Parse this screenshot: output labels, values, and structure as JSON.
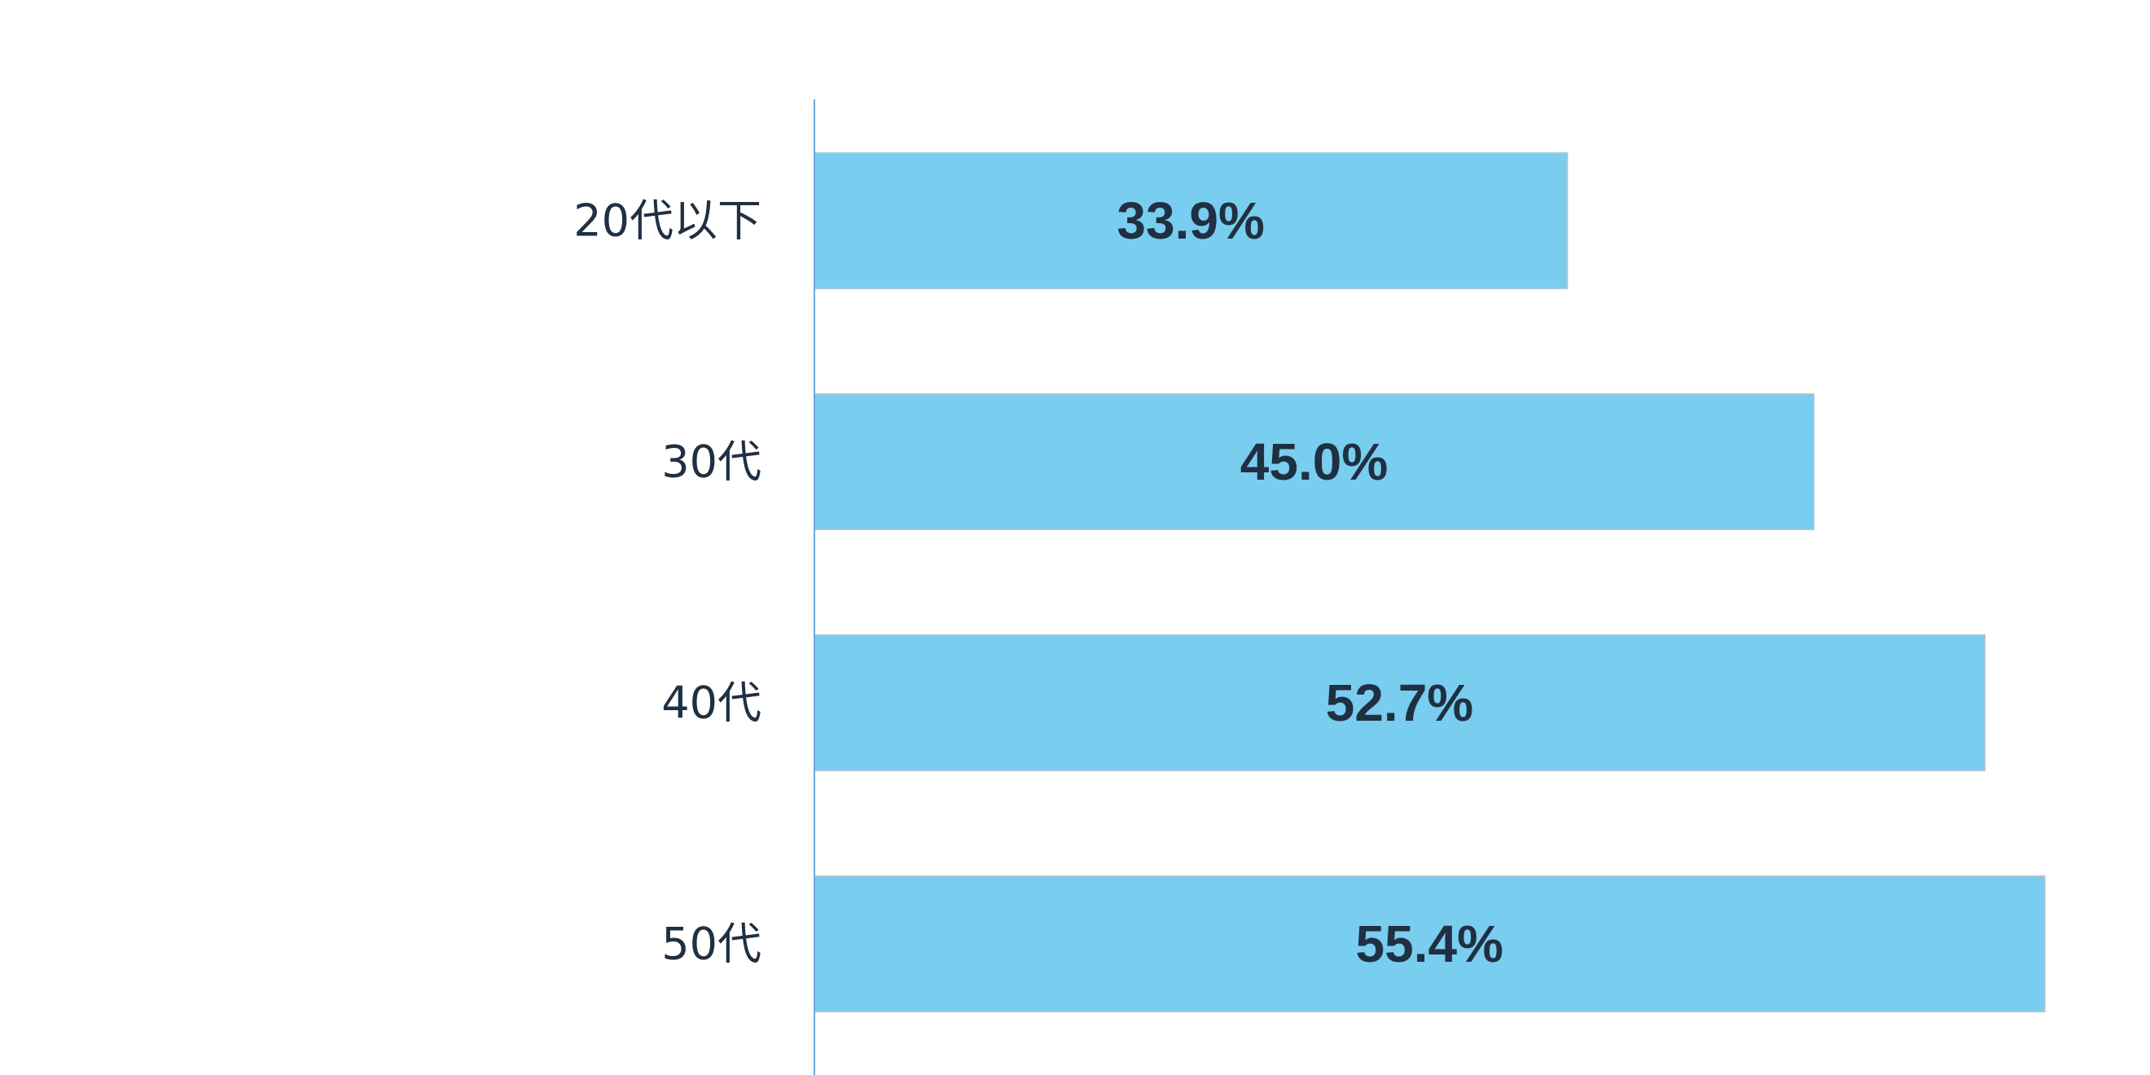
{
  "chart_data": {
    "type": "bar",
    "orientation": "horizontal",
    "categories": [
      "20代以下",
      "30代",
      "40代",
      "50代"
    ],
    "values": [
      33.9,
      45.0,
      52.7,
      55.4
    ],
    "value_labels": [
      "33.9%",
      "45.0%",
      "52.7%",
      "55.4%"
    ],
    "xlim": [
      0,
      60
    ],
    "title": "",
    "xlabel": "",
    "ylabel": "",
    "grid": false,
    "legend": "none",
    "colors": {
      "bar_fill": "#79cdef",
      "bar_stroke": "#a9c4d8",
      "axis": "#6fa8d6",
      "text": "#1f3042"
    }
  }
}
